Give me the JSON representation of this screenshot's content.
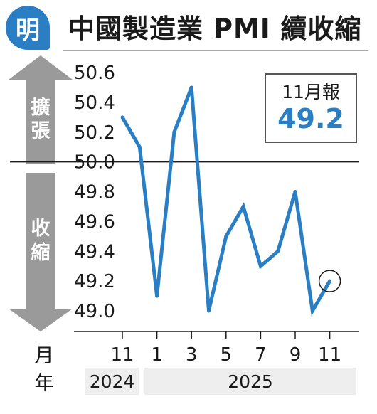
{
  "header": {
    "logo_text": "明",
    "title": "中國製造業 PMI 續收縮"
  },
  "callout": {
    "label": "11月報",
    "value": "49.2"
  },
  "arrows": {
    "up_label": "擴張",
    "down_label": "收縮"
  },
  "axis": {
    "month_label": "月",
    "year_label": "年"
  },
  "years": [
    {
      "label": "2024"
    },
    {
      "label": "2025"
    }
  ],
  "colors": {
    "line": "#2a7fc4",
    "arrow": "#9a9a9a",
    "accent": "#2a7fc4"
  },
  "chart_data": {
    "type": "line",
    "title": "中國製造業 PMI 續收縮",
    "xlabel": "月 / 年",
    "ylabel": "",
    "ylim": [
      49.0,
      50.6
    ],
    "yticks": [
      50.6,
      50.4,
      50.2,
      50.0,
      49.8,
      49.6,
      49.4,
      49.2,
      49.0
    ],
    "x_tick_labels": [
      "11",
      "1",
      "3",
      "5",
      "7",
      "9",
      "11"
    ],
    "reference_line": 50.0,
    "series": [
      {
        "name": "",
        "x": [
          "2024-11",
          "2024-12",
          "2025-01",
          "2025-02",
          "2025-03",
          "2025-04",
          "2025-05",
          "2025-06",
          "2025-07",
          "2025-08",
          "2025-09",
          "2025-10",
          "2025-11"
        ],
        "values": [
          50.3,
          50.1,
          49.1,
          50.2,
          50.5,
          49.0,
          49.5,
          49.7,
          49.3,
          49.4,
          49.8,
          49.0,
          49.2
        ]
      }
    ],
    "highlight": {
      "x": "2025-11",
      "value": 49.2
    }
  }
}
